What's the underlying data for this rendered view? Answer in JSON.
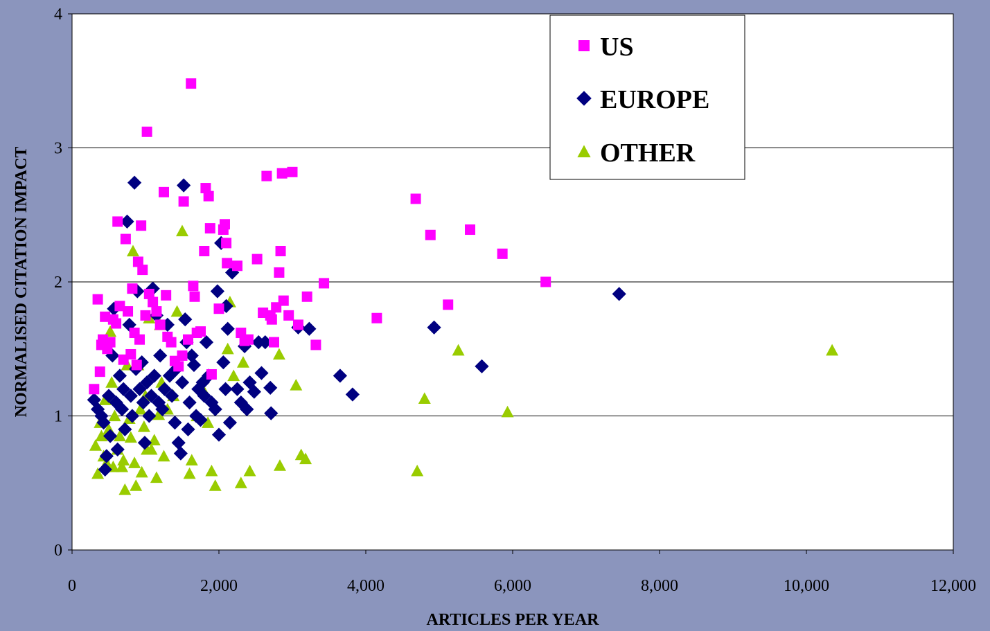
{
  "chart_data": {
    "type": "scatter",
    "xlabel": "ARTICLES PER YEAR",
    "ylabel": "NORMALISED CITATION IMPACT",
    "xlim": [
      0,
      12000
    ],
    "ylim": [
      0,
      4
    ],
    "xticks": [
      "0",
      "2,000",
      "4,000",
      "6,000",
      "8,000",
      "10,000",
      "12,000"
    ],
    "yticks": [
      "0",
      "1",
      "2",
      "3",
      "4"
    ],
    "grid": "horizontal",
    "legend_position": "top-right",
    "series": [
      {
        "name": "US",
        "marker": "square",
        "color": "#ff00ff",
        "points": [
          [
            300,
            1.2
          ],
          [
            350,
            1.87
          ],
          [
            380,
            1.33
          ],
          [
            400,
            1.53
          ],
          [
            420,
            1.57
          ],
          [
            450,
            1.74
          ],
          [
            480,
            1.5
          ],
          [
            520,
            1.55
          ],
          [
            560,
            1.72
          ],
          [
            600,
            1.69
          ],
          [
            620,
            2.45
          ],
          [
            650,
            1.82
          ],
          [
            700,
            1.42
          ],
          [
            730,
            2.32
          ],
          [
            760,
            1.78
          ],
          [
            800,
            1.46
          ],
          [
            820,
            1.95
          ],
          [
            850,
            1.62
          ],
          [
            880,
            1.38
          ],
          [
            900,
            2.15
          ],
          [
            920,
            1.57
          ],
          [
            940,
            2.42
          ],
          [
            960,
            2.09
          ],
          [
            1000,
            1.75
          ],
          [
            1020,
            3.12
          ],
          [
            1050,
            1.91
          ],
          [
            1100,
            1.85
          ],
          [
            1150,
            1.78
          ],
          [
            1200,
            1.68
          ],
          [
            1250,
            2.67
          ],
          [
            1280,
            1.9
          ],
          [
            1300,
            1.59
          ],
          [
            1350,
            1.55
          ],
          [
            1400,
            1.41
          ],
          [
            1450,
            1.37
          ],
          [
            1500,
            1.45
          ],
          [
            1520,
            2.6
          ],
          [
            1580,
            1.57
          ],
          [
            1620,
            3.48
          ],
          [
            1650,
            1.97
          ],
          [
            1670,
            1.89
          ],
          [
            1700,
            1.62
          ],
          [
            1750,
            1.63
          ],
          [
            1800,
            2.23
          ],
          [
            1820,
            2.7
          ],
          [
            1860,
            2.64
          ],
          [
            1880,
            2.4
          ],
          [
            1900,
            1.31
          ],
          [
            2000,
            1.8
          ],
          [
            2060,
            2.39
          ],
          [
            2080,
            2.43
          ],
          [
            2100,
            2.29
          ],
          [
            2110,
            2.14
          ],
          [
            2250,
            2.12
          ],
          [
            2300,
            1.62
          ],
          [
            2350,
            1.56
          ],
          [
            2400,
            1.57
          ],
          [
            2520,
            2.17
          ],
          [
            2600,
            1.77
          ],
          [
            2650,
            2.79
          ],
          [
            2700,
            1.75
          ],
          [
            2720,
            1.72
          ],
          [
            2750,
            1.55
          ],
          [
            2780,
            1.81
          ],
          [
            2820,
            2.07
          ],
          [
            2840,
            2.23
          ],
          [
            2860,
            2.81
          ],
          [
            2880,
            1.86
          ],
          [
            2950,
            1.75
          ],
          [
            3000,
            2.82
          ],
          [
            3080,
            1.68
          ],
          [
            3200,
            1.89
          ],
          [
            3320,
            1.53
          ],
          [
            3430,
            1.99
          ],
          [
            4150,
            1.73
          ],
          [
            4680,
            2.62
          ],
          [
            4880,
            2.35
          ],
          [
            5120,
            1.83
          ],
          [
            5420,
            2.39
          ],
          [
            5860,
            2.21
          ],
          [
            6450,
            2.0
          ]
        ]
      },
      {
        "name": "EUROPE",
        "marker": "diamond",
        "color": "#000080",
        "points": [
          [
            300,
            1.12
          ],
          [
            350,
            1.05
          ],
          [
            400,
            1.0
          ],
          [
            430,
            0.95
          ],
          [
            450,
            0.6
          ],
          [
            470,
            0.7
          ],
          [
            500,
            1.15
          ],
          [
            520,
            0.85
          ],
          [
            550,
            1.45
          ],
          [
            570,
            1.8
          ],
          [
            600,
            1.1
          ],
          [
            620,
            0.75
          ],
          [
            650,
            1.3
          ],
          [
            680,
            1.05
          ],
          [
            700,
            1.2
          ],
          [
            720,
            0.9
          ],
          [
            750,
            2.45
          ],
          [
            780,
            1.68
          ],
          [
            800,
            1.15
          ],
          [
            820,
            1.0
          ],
          [
            850,
            2.74
          ],
          [
            870,
            1.35
          ],
          [
            890,
            1.93
          ],
          [
            920,
            1.2
          ],
          [
            950,
            1.4
          ],
          [
            970,
            1.1
          ],
          [
            990,
            0.8
          ],
          [
            1020,
            1.25
          ],
          [
            1050,
            1.0
          ],
          [
            1080,
            1.15
          ],
          [
            1100,
            1.95
          ],
          [
            1120,
            1.3
          ],
          [
            1150,
            1.75
          ],
          [
            1180,
            1.1
          ],
          [
            1200,
            1.45
          ],
          [
            1230,
            1.05
          ],
          [
            1260,
            1.2
          ],
          [
            1300,
            1.68
          ],
          [
            1330,
            1.3
          ],
          [
            1360,
            1.15
          ],
          [
            1400,
            0.95
          ],
          [
            1420,
            1.35
          ],
          [
            1450,
            0.8
          ],
          [
            1480,
            0.72
          ],
          [
            1500,
            1.25
          ],
          [
            1520,
            2.72
          ],
          [
            1540,
            1.72
          ],
          [
            1560,
            1.55
          ],
          [
            1580,
            0.9
          ],
          [
            1600,
            1.1
          ],
          [
            1630,
            1.45
          ],
          [
            1660,
            1.38
          ],
          [
            1690,
            1.0
          ],
          [
            1720,
            1.2
          ],
          [
            1750,
            0.97
          ],
          [
            1780,
            1.25
          ],
          [
            1800,
            1.15
          ],
          [
            1830,
            1.55
          ],
          [
            1860,
            1.3
          ],
          [
            1900,
            1.1
          ],
          [
            1950,
            1.05
          ],
          [
            1980,
            1.93
          ],
          [
            2000,
            0.86
          ],
          [
            2030,
            2.29
          ],
          [
            2060,
            1.4
          ],
          [
            2090,
            1.2
          ],
          [
            2100,
            1.82
          ],
          [
            2120,
            1.65
          ],
          [
            2150,
            0.95
          ],
          [
            2180,
            2.07
          ],
          [
            2250,
            1.2
          ],
          [
            2300,
            1.1
          ],
          [
            2350,
            1.52
          ],
          [
            2380,
            1.05
          ],
          [
            2420,
            1.25
          ],
          [
            2480,
            1.18
          ],
          [
            2540,
            1.55
          ],
          [
            2580,
            1.32
          ],
          [
            2630,
            1.55
          ],
          [
            2700,
            1.21
          ],
          [
            2710,
            1.02
          ],
          [
            3080,
            1.66
          ],
          [
            3230,
            1.65
          ],
          [
            3650,
            1.3
          ],
          [
            3820,
            1.16
          ],
          [
            4930,
            1.66
          ],
          [
            5580,
            1.37
          ],
          [
            7450,
            1.91
          ]
        ]
      },
      {
        "name": "OTHER",
        "marker": "triangle",
        "color": "#99cc00",
        "points": [
          [
            320,
            0.78
          ],
          [
            350,
            0.57
          ],
          [
            380,
            0.95
          ],
          [
            400,
            0.85
          ],
          [
            430,
            0.7
          ],
          [
            450,
            1.12
          ],
          [
            470,
            0.65
          ],
          [
            500,
            0.9
          ],
          [
            520,
            1.63
          ],
          [
            540,
            1.25
          ],
          [
            560,
            0.62
          ],
          [
            580,
            1.0
          ],
          [
            620,
            0.75
          ],
          [
            650,
            0.85
          ],
          [
            680,
            0.62
          ],
          [
            700,
            0.67
          ],
          [
            720,
            0.45
          ],
          [
            750,
            1.38
          ],
          [
            780,
            0.98
          ],
          [
            800,
            0.84
          ],
          [
            830,
            2.23
          ],
          [
            850,
            0.65
          ],
          [
            870,
            0.48
          ],
          [
            900,
            1.38
          ],
          [
            930,
            1.05
          ],
          [
            950,
            0.58
          ],
          [
            980,
            0.92
          ],
          [
            1000,
            1.15
          ],
          [
            1020,
            0.75
          ],
          [
            1050,
            1.73
          ],
          [
            1080,
            0.75
          ],
          [
            1120,
            0.82
          ],
          [
            1150,
            0.54
          ],
          [
            1180,
            1.01
          ],
          [
            1200,
            1.68
          ],
          [
            1220,
            1.25
          ],
          [
            1250,
            0.7
          ],
          [
            1300,
            1.05
          ],
          [
            1380,
            1.15
          ],
          [
            1430,
            1.78
          ],
          [
            1500,
            2.38
          ],
          [
            1600,
            0.57
          ],
          [
            1630,
            0.67
          ],
          [
            1700,
            1.0
          ],
          [
            1780,
            1.2
          ],
          [
            1850,
            0.95
          ],
          [
            1900,
            0.59
          ],
          [
            1950,
            0.48
          ],
          [
            2120,
            1.5
          ],
          [
            2150,
            1.85
          ],
          [
            2200,
            1.3
          ],
          [
            2300,
            0.5
          ],
          [
            2330,
            1.4
          ],
          [
            2420,
            0.59
          ],
          [
            2820,
            1.46
          ],
          [
            2830,
            0.63
          ],
          [
            3050,
            1.23
          ],
          [
            3120,
            0.71
          ],
          [
            3180,
            0.68
          ],
          [
            4700,
            0.59
          ],
          [
            4800,
            1.13
          ],
          [
            5260,
            1.49
          ],
          [
            5930,
            1.03
          ],
          [
            10350,
            1.49
          ]
        ]
      }
    ]
  },
  "colors": {
    "background": "#8b95bd",
    "plot_area": "#ffffff"
  }
}
